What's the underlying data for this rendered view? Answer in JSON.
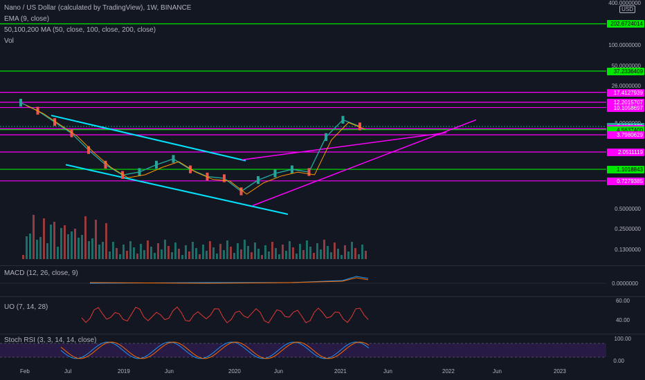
{
  "header": {
    "title": "Nano / US Dollar (calculated by TradingView), 1W, BINANCE",
    "indicators": [
      "EMA (9, close)",
      "50,100,200 MA (50, close, 100, close, 200, close)",
      "Vol"
    ]
  },
  "currency_badge": "USD",
  "price_axis_ticks": [
    "400.0000000",
    "100.0000000",
    "50.0000000",
    "26.0000000",
    "8.0000000",
    "0.5000000",
    "0.2500000",
    "0.1300000"
  ],
  "price_tags": [
    {
      "label": "202.6724014",
      "color": "#00e600"
    },
    {
      "label": "37.2336409",
      "color": "#00e600"
    },
    {
      "label": "17.4127939",
      "color": "#ff00ff"
    },
    {
      "label": "12.2015707",
      "color": "#ff00ff"
    },
    {
      "label": "10.1058697",
      "color": "#ff00ff"
    },
    {
      "label": "5.1171679",
      "color": "#26a69a"
    },
    {
      "label": "3d 9h",
      "color": "#26a69a"
    },
    {
      "label": "4.7264461",
      "color": "#ff00ff"
    },
    {
      "label": "4.5637400",
      "color": "#00e600"
    },
    {
      "label": "3.7980629",
      "color": "#ff00ff"
    },
    {
      "label": "2.0511119",
      "color": "#ff00ff"
    },
    {
      "label": "1.1018843",
      "color": "#00e600"
    },
    {
      "label": "0.7279385",
      "color": "#ff00ff"
    }
  ],
  "panes": {
    "macd": {
      "label": "MACD (12, 26, close, 9)",
      "tick": "0.0000000"
    },
    "uo": {
      "label": "UO (7, 14, 28)",
      "ticks": [
        "60.00",
        "40.00"
      ]
    },
    "stoch": {
      "label": "Stoch RSI (3, 3, 14, 14, close)",
      "ticks": [
        "100.00",
        "0.00"
      ]
    }
  },
  "time_axis": [
    "Feb",
    "Jul",
    "2019",
    "Jun",
    "2020",
    "Jun",
    "2021",
    "Jun",
    "2022",
    "Jun",
    "2023"
  ],
  "chart_data": {
    "type": "line",
    "title": "Nano / US Dollar (calculated by TradingView), 1W, BINANCE",
    "scale": "log",
    "x": [
      "2018-02",
      "2018-03",
      "2018-05",
      "2018-07",
      "2018-09",
      "2018-11",
      "2019-01",
      "2019-03",
      "2019-05",
      "2019-07",
      "2019-09",
      "2019-11",
      "2020-01",
      "2020-03",
      "2020-05",
      "2020-07",
      "2020-09",
      "2020-11",
      "2021-01",
      "2021-02",
      "2021-03"
    ],
    "series": [
      {
        "values": [
          12.0,
          9.0,
          6.0,
          4.0,
          2.2,
          1.3,
          0.9,
          1.0,
          1.3,
          1.6,
          1.1,
          0.85,
          0.8,
          0.5,
          0.75,
          0.95,
          1.1,
          1.0,
          3.5,
          6.5,
          5.12
        ]
      }
    ],
    "horizontal_levels": [
      202.6724014,
      37.2336409,
      17.4127939,
      12.2015707,
      10.1058697,
      4.7264461,
      4.56374,
      3.7980629,
      2.0511119,
      1.1018843,
      0.7279385
    ],
    "ylim": [
      0.13,
      400
    ]
  }
}
